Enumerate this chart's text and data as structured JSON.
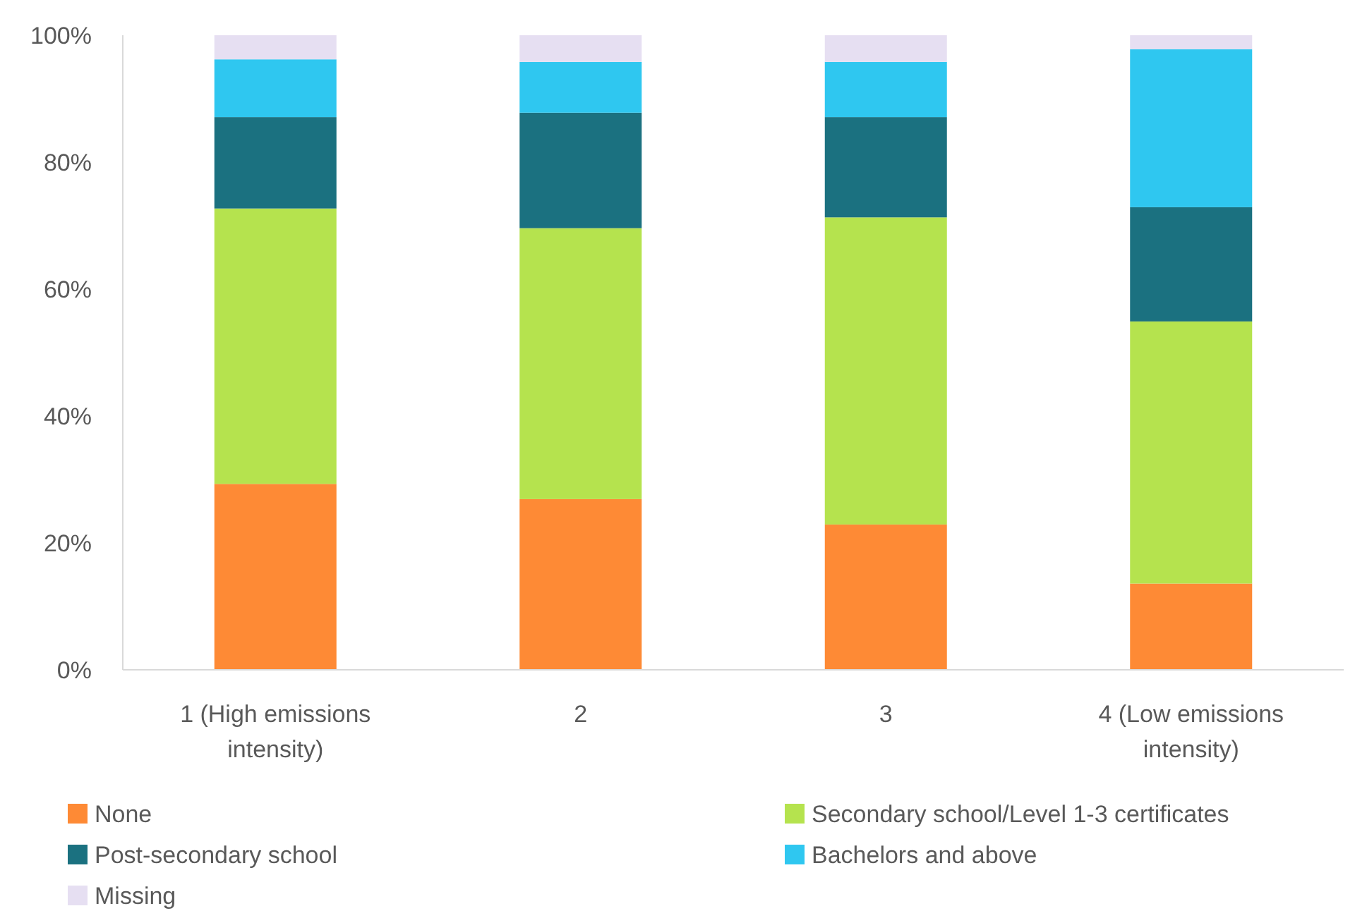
{
  "chart_data": {
    "type": "bar",
    "stacked": true,
    "categories": [
      "1 (High emissions intensity)",
      "2",
      "3",
      "4 (Low emissions intensity)"
    ],
    "ylim": [
      0,
      100
    ],
    "yticks": [
      {
        "value": 0,
        "label": "0%"
      },
      {
        "value": 20,
        "label": "20%"
      },
      {
        "value": 40,
        "label": "40%"
      },
      {
        "value": 60,
        "label": "60%"
      },
      {
        "value": 80,
        "label": "80%"
      },
      {
        "value": 100,
        "label": "100%"
      }
    ],
    "grid": false,
    "legend": "bottom",
    "series": [
      {
        "name": "None",
        "color": "#fe8a35",
        "values": [
          29.3,
          26.9,
          22.9,
          13.6
        ]
      },
      {
        "name": "Secondary school/Level 1-3 certificates",
        "color": "#b5e34e",
        "values": [
          43.4,
          42.7,
          48.4,
          41.3
        ]
      },
      {
        "name": "Post-secondary school",
        "color": "#1b7180",
        "values": [
          14.4,
          18.2,
          15.8,
          18.0
        ]
      },
      {
        "name": "Bachelors and above",
        "color": "#2fc7f0",
        "values": [
          9.1,
          8.0,
          8.7,
          24.9
        ]
      },
      {
        "name": "Missing",
        "color": "#e6dff2",
        "values": [
          3.8,
          4.2,
          4.2,
          2.2
        ]
      }
    ]
  }
}
